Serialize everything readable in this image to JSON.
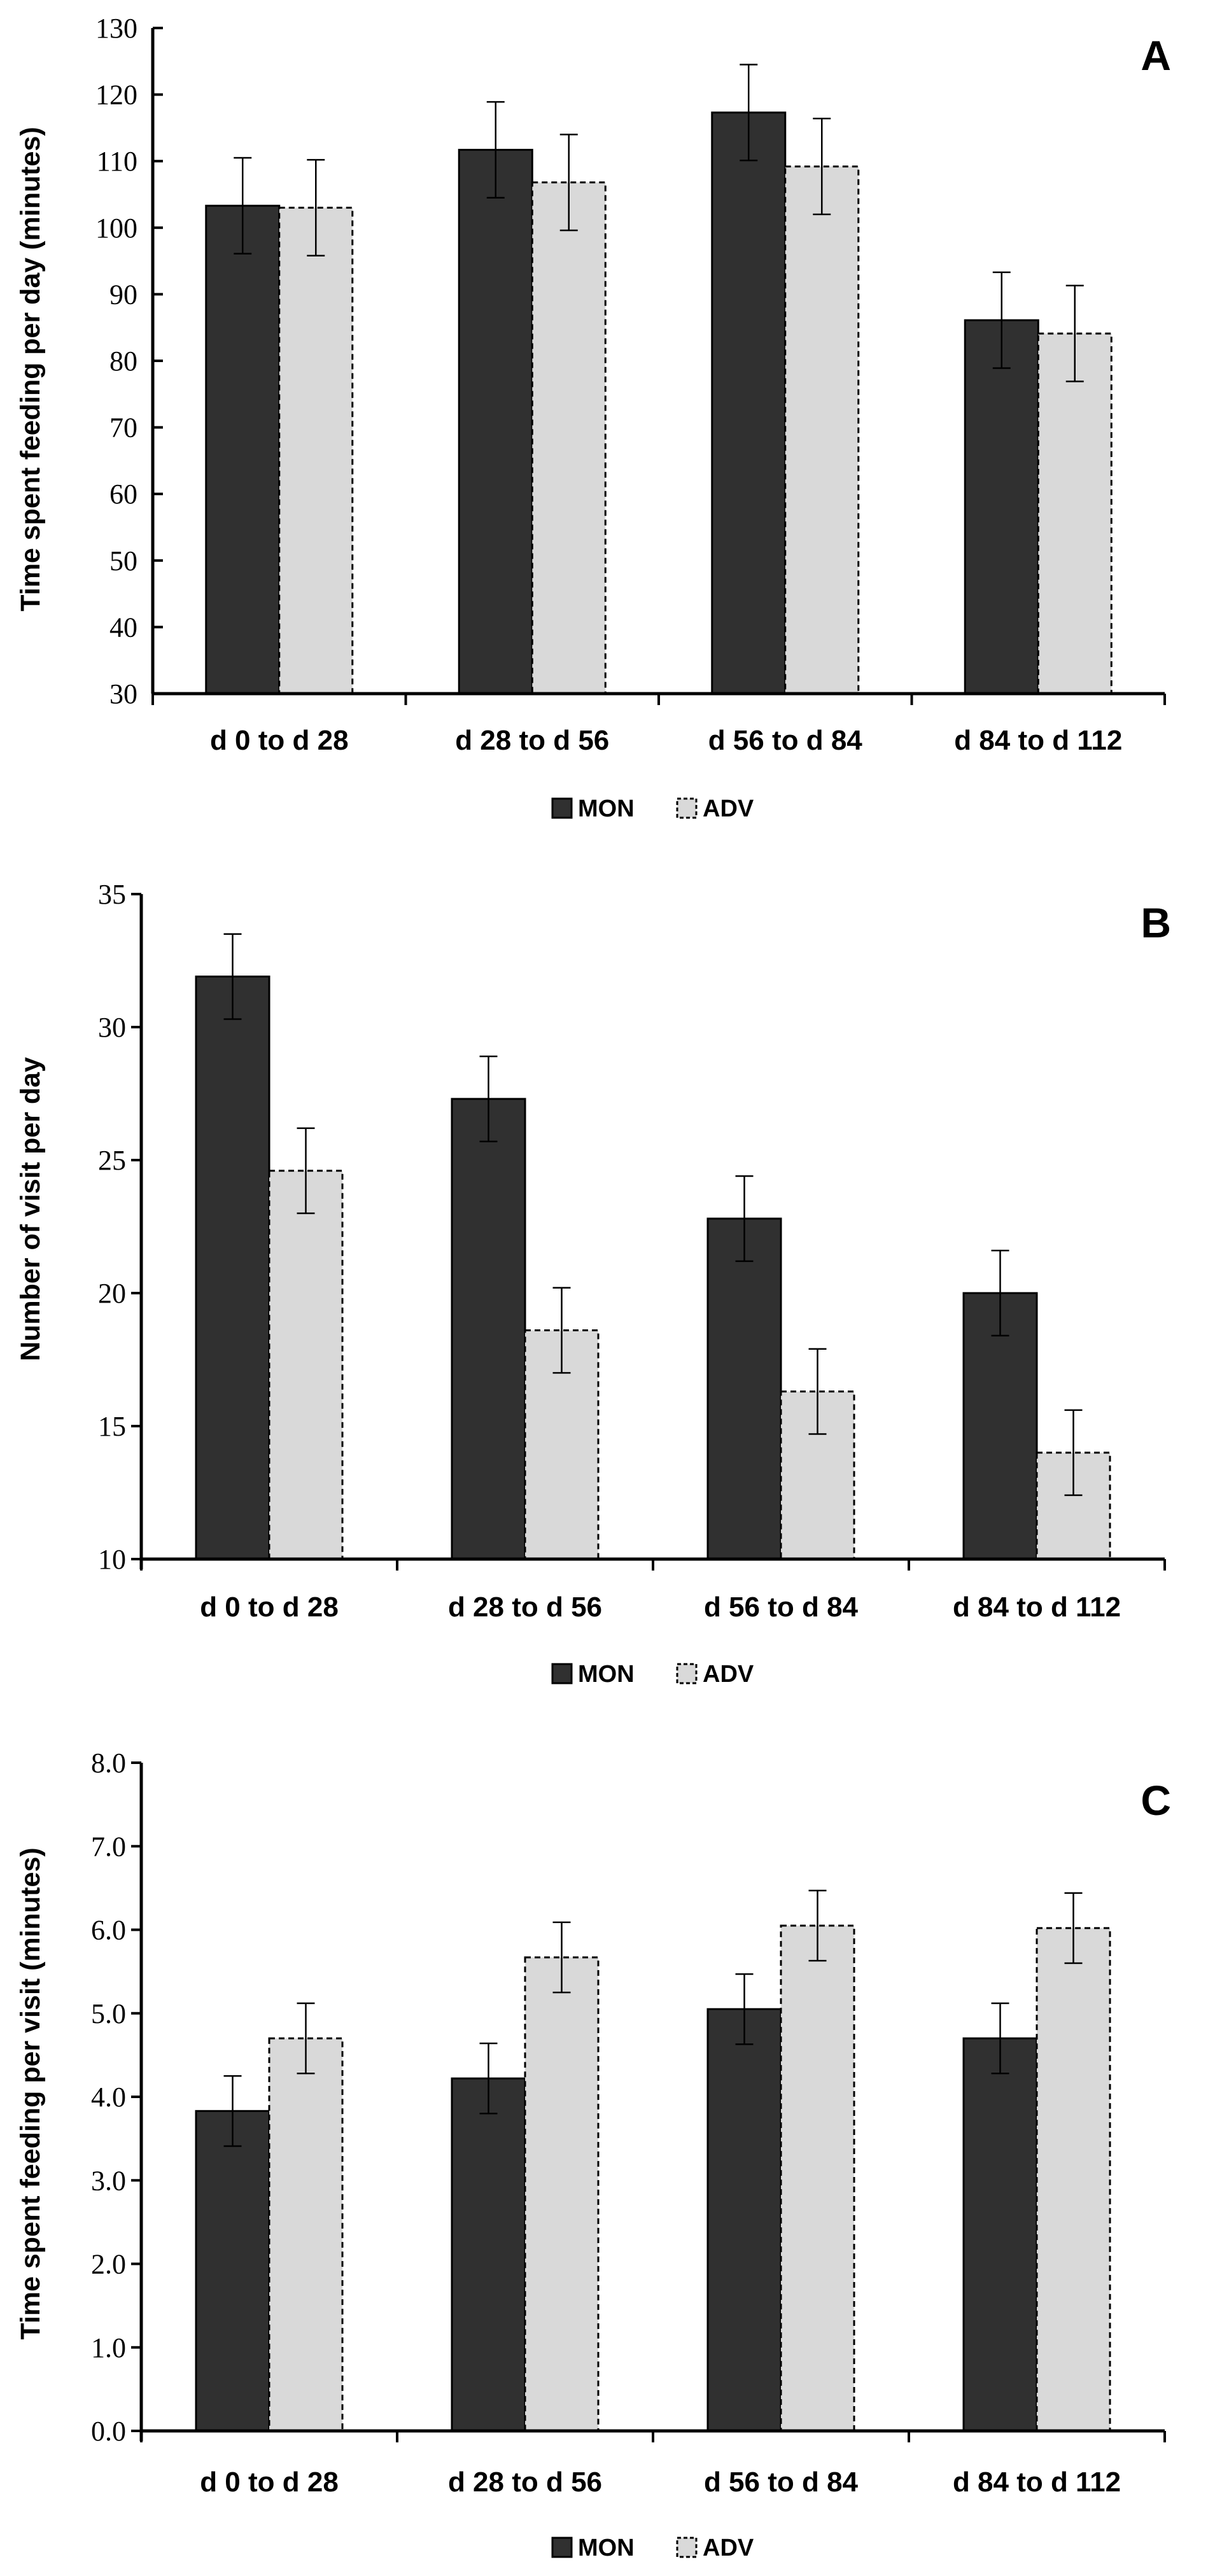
{
  "chart_data": [
    {
      "type": "bar",
      "panel": "A",
      "ylabel": "Time spent feeding per day (minutes)",
      "xlabel": "",
      "ylim": [
        30,
        130
      ],
      "ytick_step": 10,
      "ytick_decimals": 0,
      "categories": [
        "d 0 to d 28",
        "d 28 to d 56",
        "d 56 to d 84",
        "d 84 to d 112"
      ],
      "series": [
        {
          "name": "MON",
          "color": "#303030",
          "dashed": false,
          "values": [
            103.3,
            111.7,
            117.3,
            86.1
          ],
          "errors": [
            7.2,
            7.2,
            7.2,
            7.2
          ]
        },
        {
          "name": "ADV",
          "color": "#d9d9d9",
          "dashed": true,
          "values": [
            103.0,
            106.8,
            109.2,
            84.1
          ],
          "errors": [
            7.2,
            7.2,
            7.2,
            7.2
          ]
        }
      ],
      "legend": [
        "MON",
        "ADV"
      ],
      "legend_position": "bottom-center"
    },
    {
      "type": "bar",
      "panel": "B",
      "ylabel": "Number of visit per day",
      "xlabel": "",
      "ylim": [
        10,
        35
      ],
      "ytick_step": 5,
      "ytick_decimals": 0,
      "categories": [
        "d 0 to d 28",
        "d 28 to d 56",
        "d 56 to d 84",
        "d 84 to d 112"
      ],
      "series": [
        {
          "name": "MON",
          "color": "#303030",
          "dashed": false,
          "values": [
            31.9,
            27.3,
            22.8,
            20.0
          ],
          "errors": [
            1.6,
            1.6,
            1.6,
            1.6
          ]
        },
        {
          "name": "ADV",
          "color": "#d9d9d9",
          "dashed": true,
          "values": [
            24.6,
            18.6,
            16.3,
            14.0
          ],
          "errors": [
            1.6,
            1.6,
            1.6,
            1.6
          ]
        }
      ],
      "legend": [
        "MON",
        "ADV"
      ],
      "legend_position": "bottom-center"
    },
    {
      "type": "bar",
      "panel": "C",
      "ylabel": "Time spent feeding per visit (minutes)",
      "xlabel": "",
      "ylim": [
        0,
        8
      ],
      "ytick_step": 1,
      "ytick_decimals": 1,
      "categories": [
        "d 0 to d 28",
        "d 28 to d 56",
        "d 56 to d 84",
        "d 84 to d 112"
      ],
      "series": [
        {
          "name": "MON",
          "color": "#303030",
          "dashed": false,
          "values": [
            3.83,
            4.22,
            5.05,
            4.7
          ],
          "errors": [
            0.42,
            0.42,
            0.42,
            0.42
          ]
        },
        {
          "name": "ADV",
          "color": "#d9d9d9",
          "dashed": true,
          "values": [
            4.7,
            5.67,
            6.05,
            6.02
          ],
          "errors": [
            0.42,
            0.42,
            0.42,
            0.42
          ]
        }
      ],
      "legend": [
        "MON",
        "ADV"
      ],
      "legend_position": "bottom-center"
    }
  ]
}
